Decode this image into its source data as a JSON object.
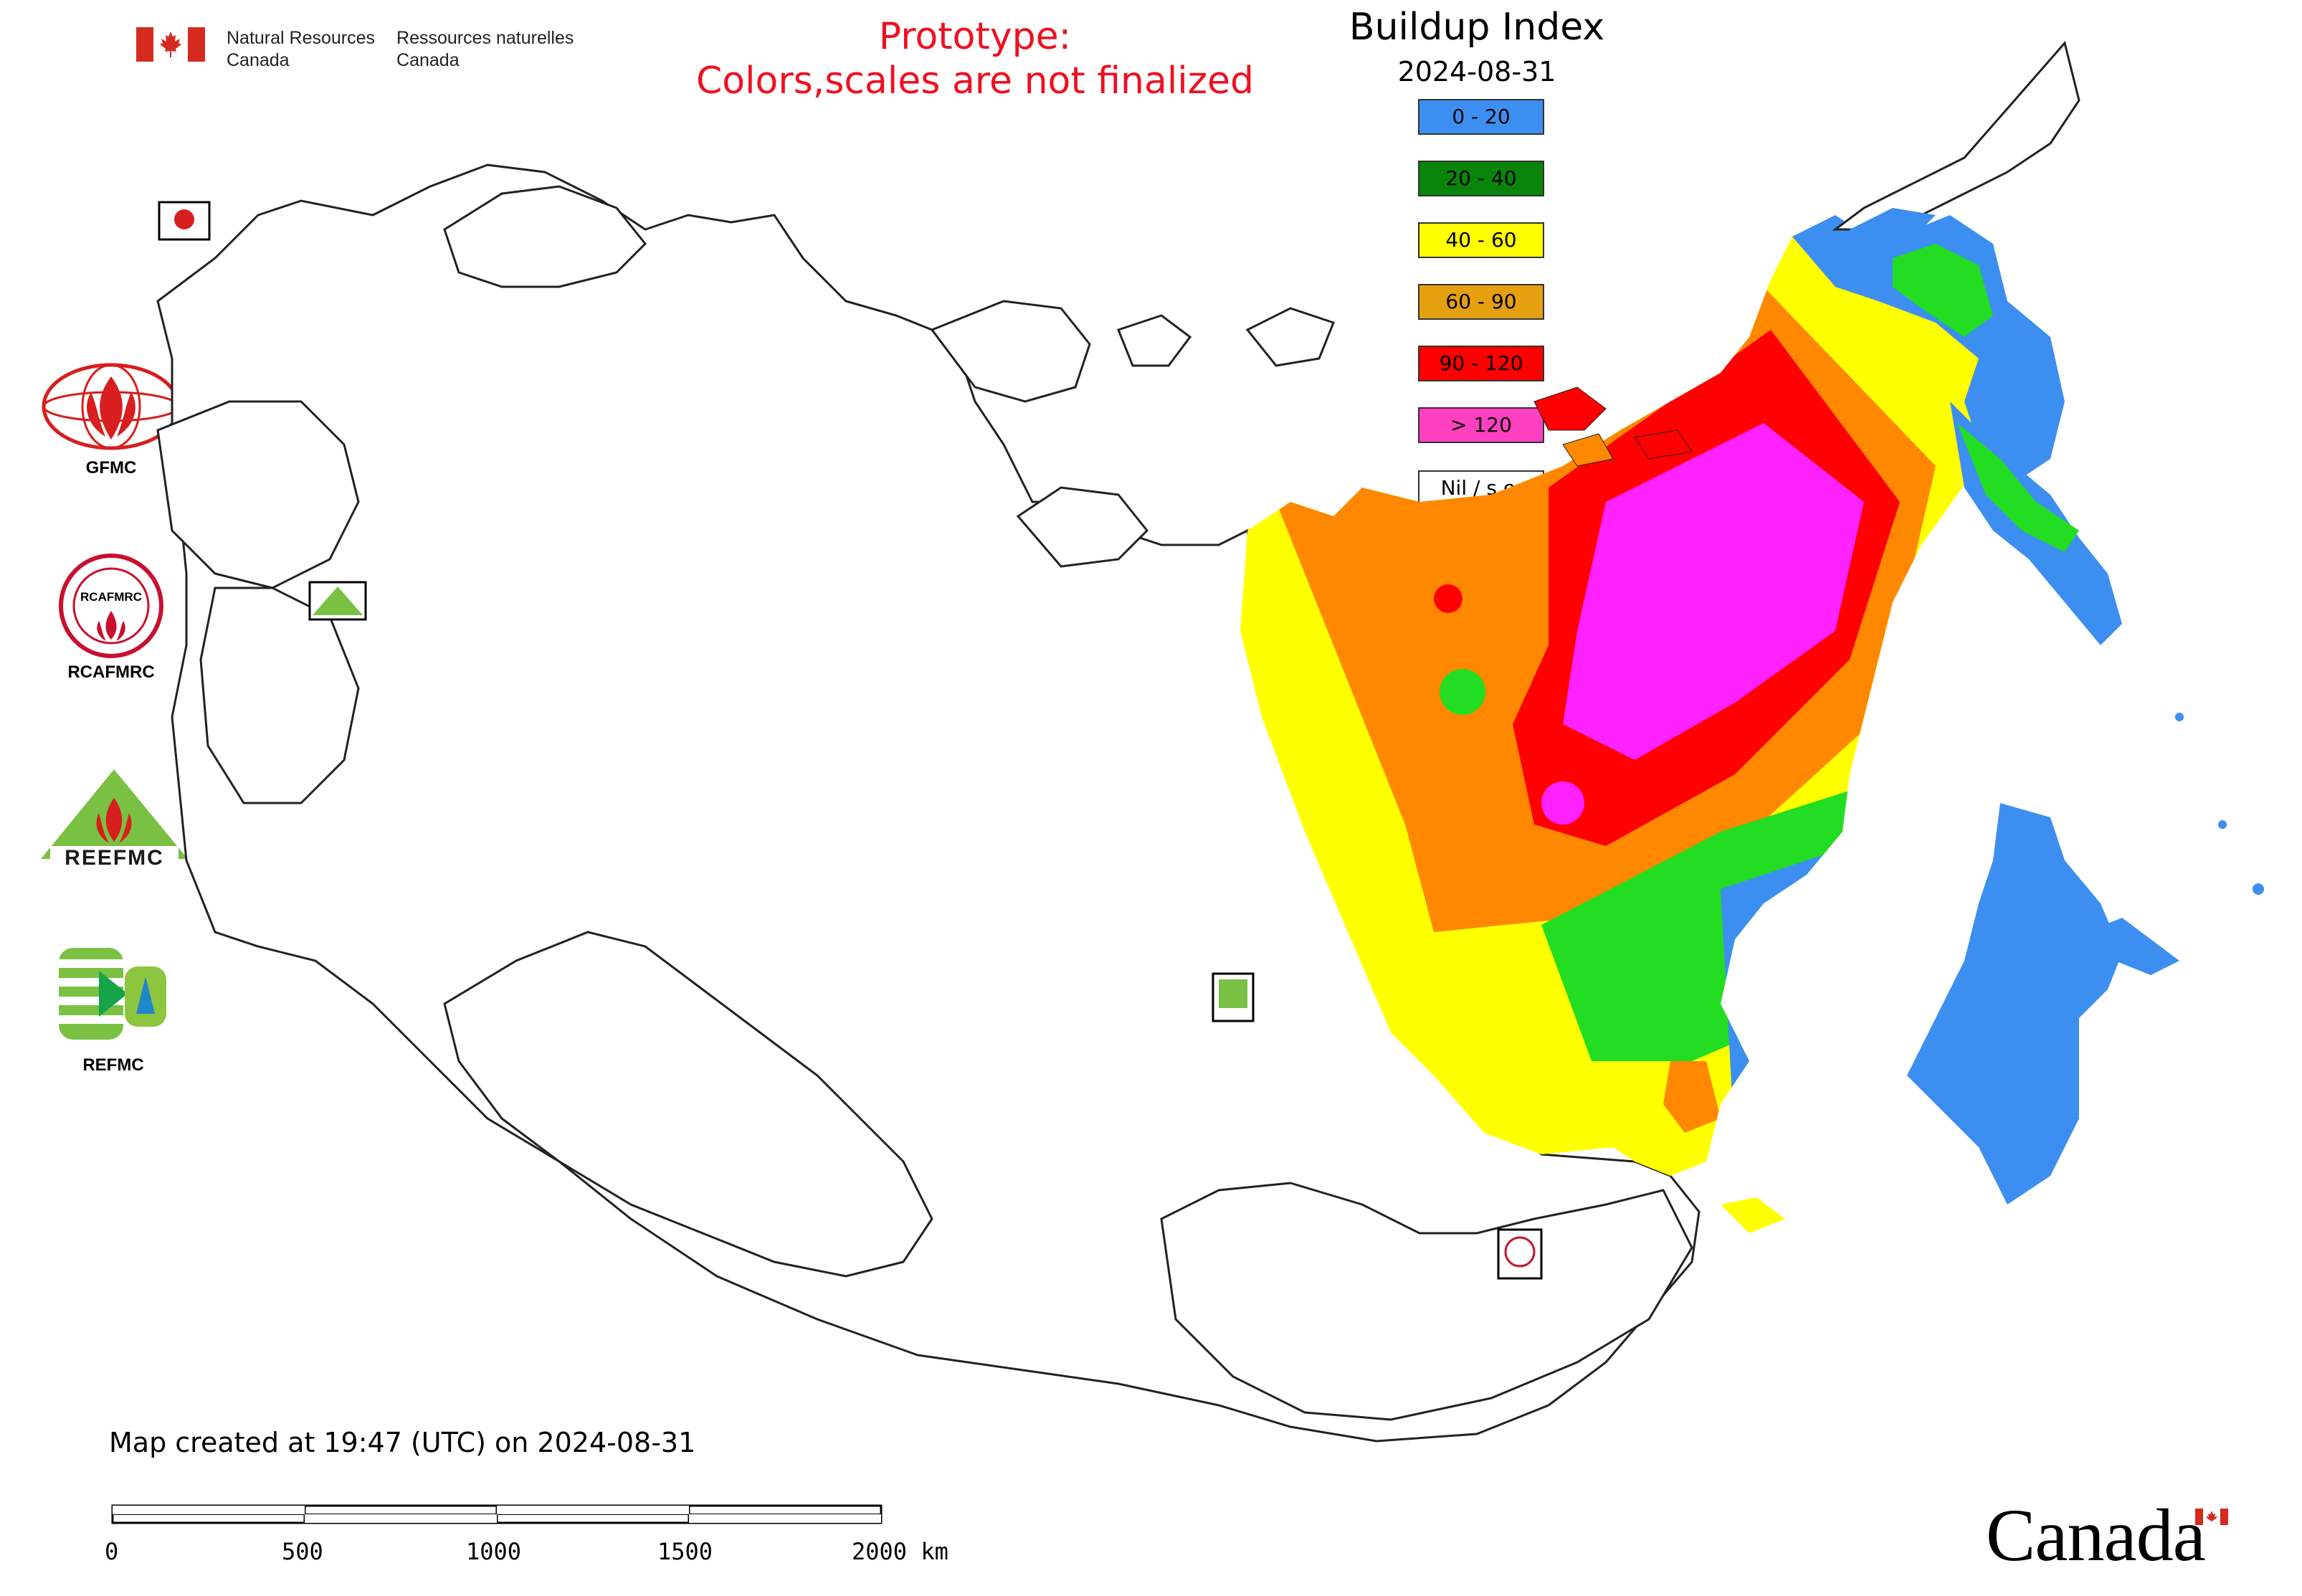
{
  "header": {
    "department_en_line1": "Natural Resources",
    "department_en_line2": "Canada",
    "department_fr_line1": "Ressources naturelles",
    "department_fr_line2": "Canada",
    "notice_line1": "Prototype:",
    "notice_line2": "Colors,scales are not finalized"
  },
  "legend": {
    "title": "Buildup Index",
    "date": "2024-08-31",
    "classes": [
      {
        "label": "0 - 20",
        "color": "#3c8ff0"
      },
      {
        "label": "20 - 40",
        "color": "#088508"
      },
      {
        "label": "40 - 60",
        "color": "#ffff00"
      },
      {
        "label": "60 - 90",
        "color": "#e5a010"
      },
      {
        "label": "90 - 120",
        "color": "#ff0000"
      },
      {
        "label": "> 120",
        "color": "#ff40c0"
      },
      {
        "label": "Nil / s.o.",
        "color": "#ffffff"
      }
    ]
  },
  "logos": {
    "gfmc": "GFMC",
    "rcafmrc": "RCAFMRC",
    "reefmc": "REEFMC",
    "refmc": "REFMC"
  },
  "footer": {
    "created": "Map created at 19:47 (UTC) on 2024-08-31",
    "scale_labels": [
      "0",
      "500",
      "1000",
      "1500",
      "2000 km"
    ],
    "wordmark": "Canada"
  },
  "colors": {
    "map_orange": "#ff8800",
    "map_green": "#22dd22",
    "map_magenta": "#ff22ff",
    "notice_red": "#ef1020"
  }
}
